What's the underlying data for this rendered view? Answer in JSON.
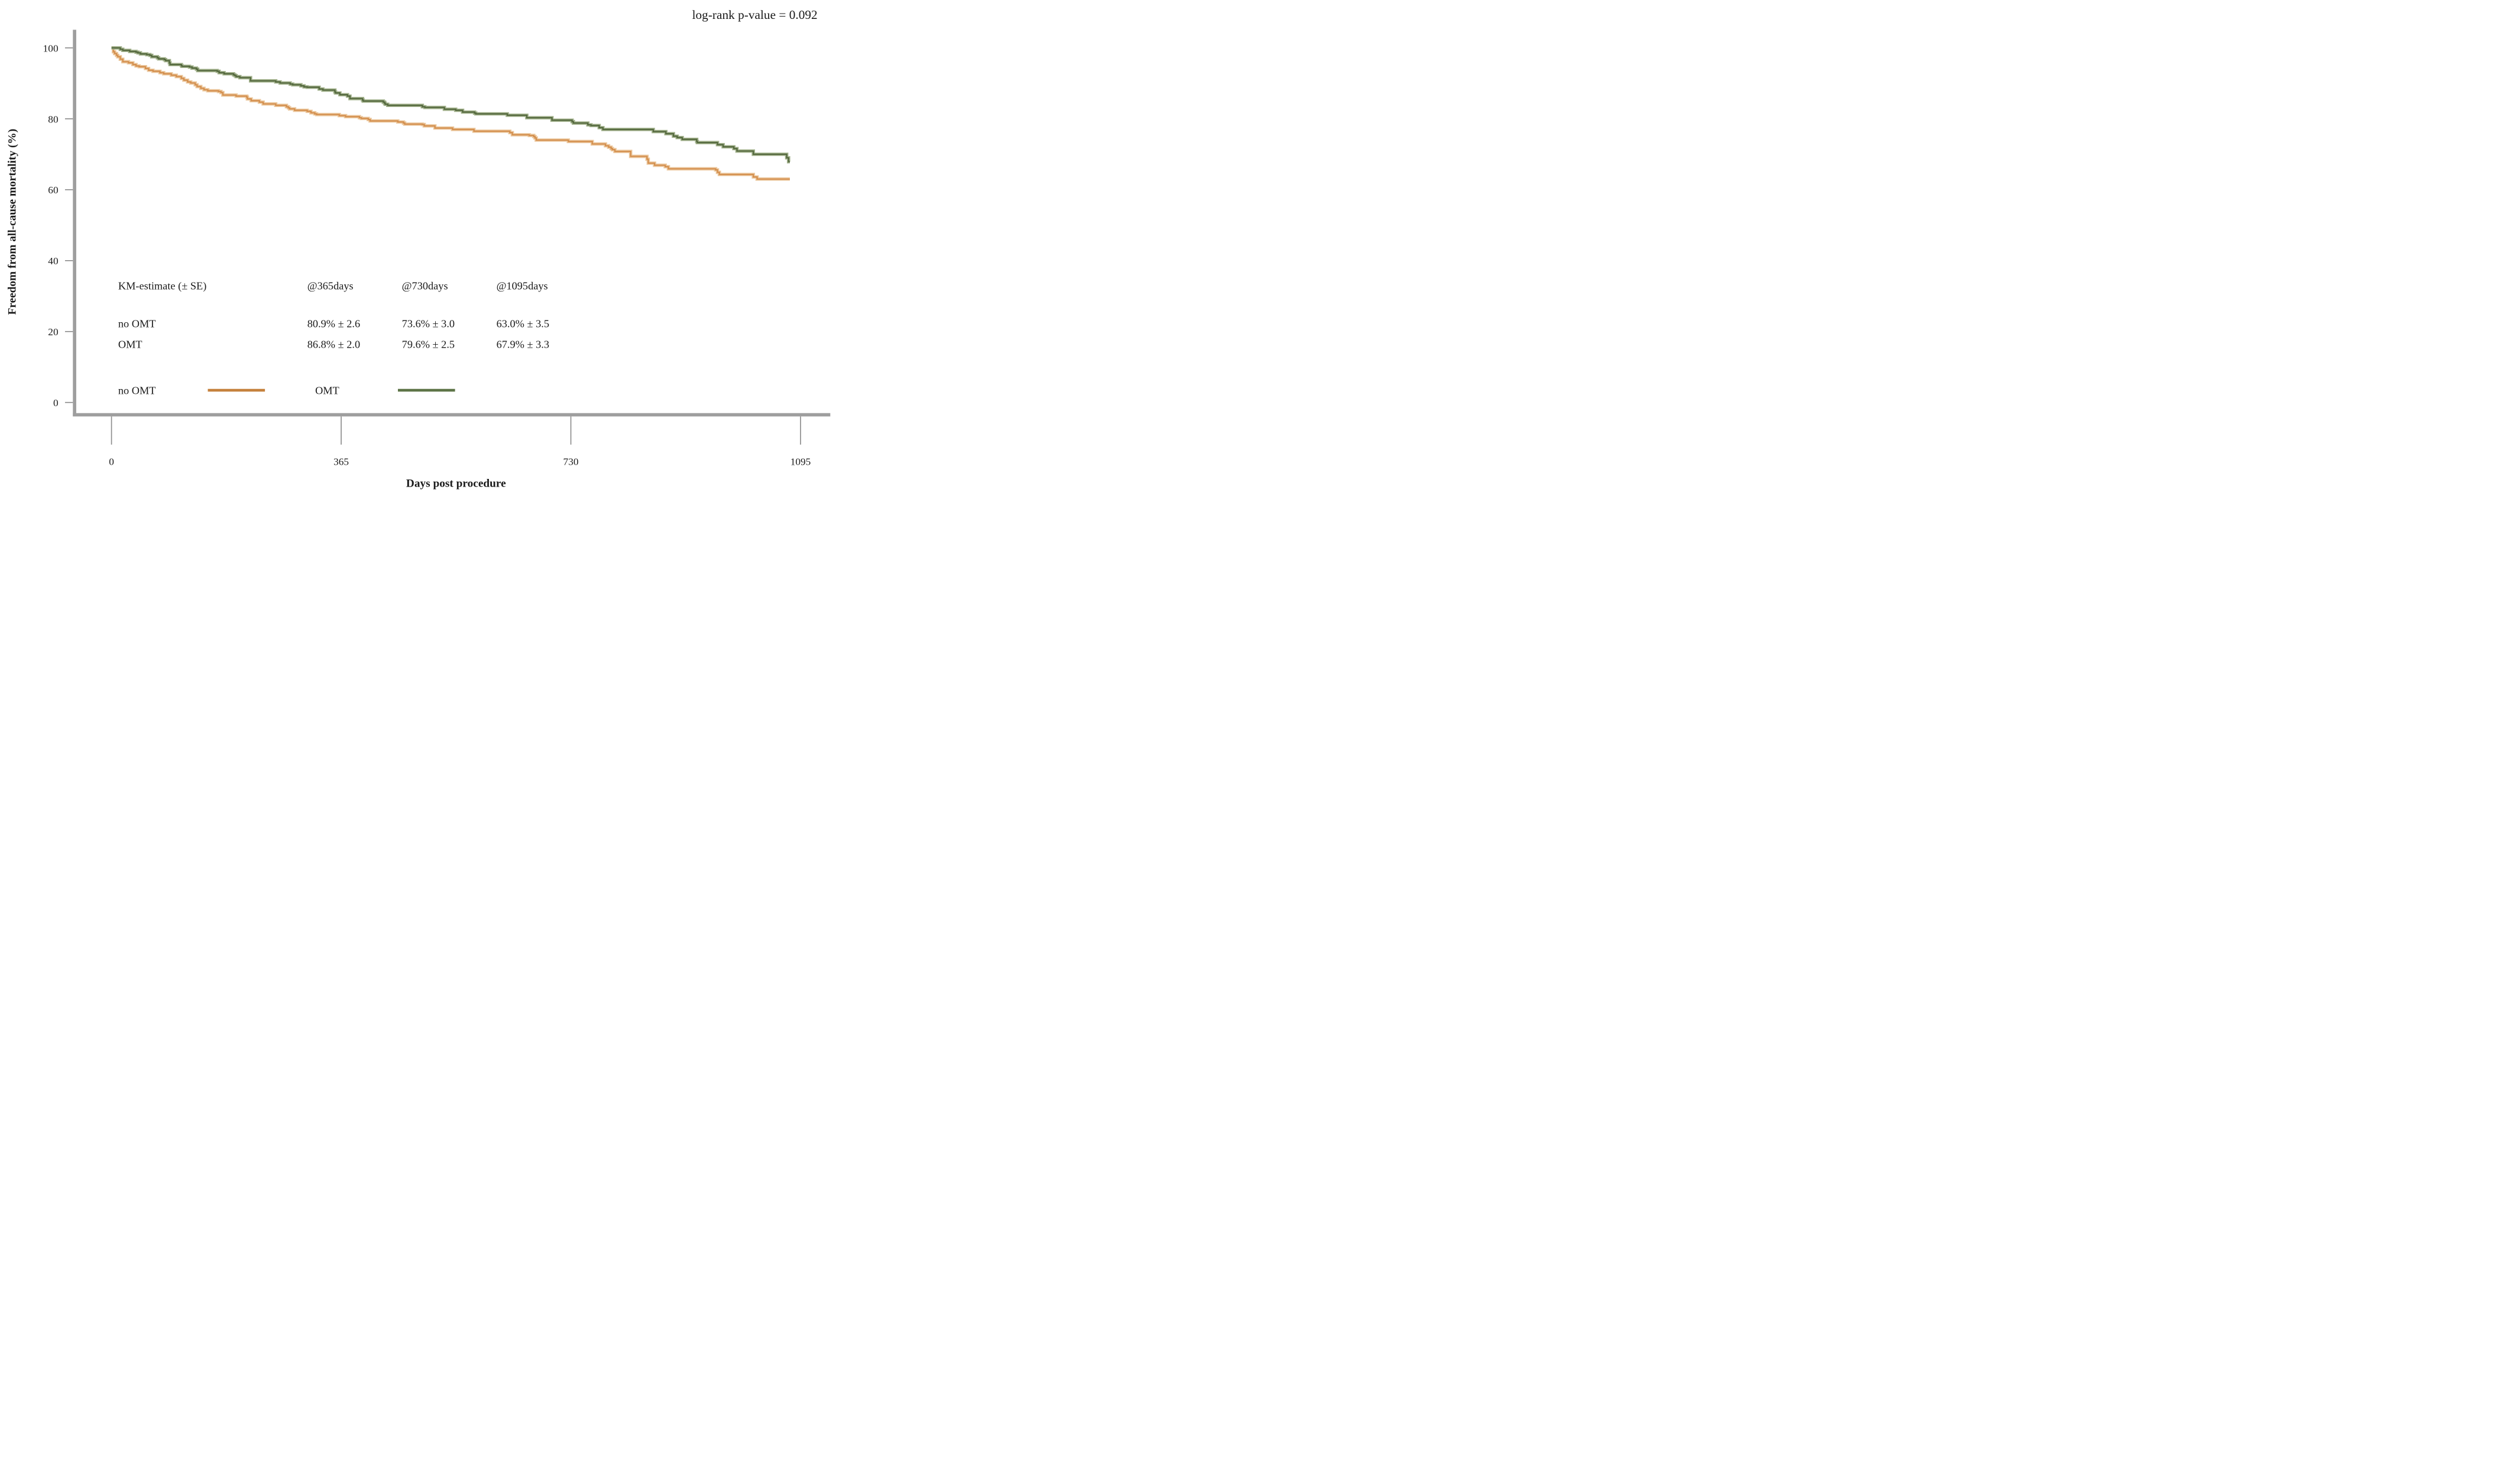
{
  "annotation": {
    "text": "log-rank p-value = 0.092"
  },
  "km_table": {
    "header": [
      "KM-estimate (± SE)",
      "@365days",
      "@730days",
      "@1095days"
    ],
    "rows": [
      {
        "label": "no OMT",
        "color": "#c25a15",
        "values": [
          "80.9% ± 2.6",
          "73.6% ± 3.0",
          "63.0% ± 3.5"
        ]
      },
      {
        "label": "OMT",
        "color": "#5f7347",
        "values": [
          "86.8% ± 2.0",
          "79.6% ± 2.5",
          "67.9% ± 3.3"
        ]
      }
    ]
  },
  "legend": {
    "items": [
      {
        "label": "no OMT",
        "color": "#c5813c"
      },
      {
        "label": "OMT",
        "color": "#5d7447"
      }
    ]
  },
  "chart_data": {
    "type": "line",
    "stepped": true,
    "title": "",
    "xlabel": "Days post procedure",
    "ylabel": "Freedom from all-cause mortality (%)",
    "annotation": "log-rank p-value = 0.092",
    "xlim": [
      0,
      1140
    ],
    "ylim": [
      0,
      100
    ],
    "x_ticks": [
      0,
      365,
      730,
      1095
    ],
    "y_ticks": [
      0,
      20,
      40,
      60,
      80,
      100
    ],
    "grid": false,
    "legend_position": "bottom-left-inside",
    "km_estimates": {
      "at_days": [
        365,
        730,
        1095
      ],
      "no OMT": {
        "estimate": [
          80.9,
          73.6,
          63.0
        ],
        "se": [
          2.6,
          3.0,
          3.5
        ]
      },
      "OMT": {
        "estimate": [
          86.8,
          79.6,
          67.9
        ],
        "se": [
          2.0,
          2.5,
          3.3
        ]
      }
    },
    "series": [
      {
        "name": "no OMT",
        "color": "#d4904f",
        "halo": "#ecc9a0",
        "points": [
          [
            0,
            100
          ],
          [
            3,
            98.9
          ],
          [
            5,
            98.4
          ],
          [
            8,
            97.9
          ],
          [
            10,
            97.5
          ],
          [
            14,
            96.8
          ],
          [
            18,
            96.1
          ],
          [
            27,
            95.8
          ],
          [
            34,
            95.3
          ],
          [
            39,
            94.9
          ],
          [
            44,
            94.7
          ],
          [
            54,
            94.2
          ],
          [
            59,
            93.7
          ],
          [
            66,
            93.4
          ],
          [
            77,
            93.0
          ],
          [
            83,
            92.7
          ],
          [
            95,
            92.3
          ],
          [
            103,
            91.9
          ],
          [
            111,
            91.4
          ],
          [
            115,
            90.9
          ],
          [
            121,
            90.4
          ],
          [
            126,
            90.1
          ],
          [
            133,
            89.6
          ],
          [
            136,
            89.1
          ],
          [
            142,
            88.6
          ],
          [
            147,
            88.2
          ],
          [
            153,
            87.9
          ],
          [
            170,
            87.7
          ],
          [
            174,
            87.4
          ],
          [
            177,
            86.7
          ],
          [
            198,
            86.4
          ],
          [
            215,
            86.1
          ],
          [
            216,
            85.6
          ],
          [
            222,
            85.1
          ],
          [
            235,
            84.7
          ],
          [
            241,
            84.2
          ],
          [
            261,
            83.8
          ],
          [
            278,
            83.4
          ],
          [
            281,
            83.1
          ],
          [
            283,
            82.8
          ],
          [
            291,
            82.4
          ],
          [
            311,
            82.1
          ],
          [
            317,
            81.7
          ],
          [
            323,
            81.4
          ],
          [
            326,
            81.2
          ],
          [
            362,
            80.9
          ],
          [
            372,
            80.6
          ],
          [
            394,
            80.3
          ],
          [
            397,
            80.1
          ],
          [
            408,
            79.8
          ],
          [
            411,
            79.4
          ],
          [
            455,
            79.1
          ],
          [
            464,
            78.8
          ],
          [
            466,
            78.5
          ],
          [
            494,
            78.4
          ],
          [
            497,
            78.0
          ],
          [
            514,
            77.4
          ],
          [
            542,
            77.0
          ],
          [
            576,
            76.5
          ],
          [
            633,
            76.1
          ],
          [
            637,
            75.5
          ],
          [
            664,
            75.3
          ],
          [
            671,
            75.0
          ],
          [
            673,
            74.6
          ],
          [
            675,
            74.0
          ],
          [
            726,
            73.6
          ],
          [
            764,
            72.9
          ],
          [
            785,
            72.4
          ],
          [
            790,
            72.0
          ],
          [
            794,
            71.6
          ],
          [
            796,
            71.3
          ],
          [
            800,
            70.8
          ],
          [
            825,
            69.4
          ],
          [
            851,
            68.6
          ],
          [
            853,
            67.5
          ],
          [
            863,
            66.9
          ],
          [
            880,
            66.5
          ],
          [
            885,
            65.9
          ],
          [
            960,
            65.6
          ],
          [
            963,
            64.9
          ],
          [
            966,
            64.3
          ],
          [
            1020,
            63.6
          ],
          [
            1026,
            63.0
          ],
          [
            1078,
            63.0
          ]
        ]
      },
      {
        "name": "OMT",
        "color": "#55693f",
        "halo": "#a3b28d",
        "points": [
          [
            0,
            100
          ],
          [
            14,
            99.6
          ],
          [
            18,
            99.3
          ],
          [
            29,
            99.0
          ],
          [
            39,
            98.8
          ],
          [
            42,
            98.6
          ],
          [
            46,
            98.3
          ],
          [
            56,
            98.1
          ],
          [
            61,
            97.9
          ],
          [
            64,
            97.5
          ],
          [
            73,
            97.2
          ],
          [
            75,
            96.9
          ],
          [
            84,
            96.7
          ],
          [
            86,
            96.4
          ],
          [
            92,
            95.8
          ],
          [
            93,
            95.3
          ],
          [
            111,
            95.0
          ],
          [
            112,
            94.8
          ],
          [
            124,
            94.6
          ],
          [
            128,
            94.3
          ],
          [
            135,
            94.0
          ],
          [
            137,
            93.6
          ],
          [
            168,
            93.4
          ],
          [
            171,
            93.0
          ],
          [
            179,
            92.7
          ],
          [
            194,
            92.4
          ],
          [
            196,
            92.2
          ],
          [
            198,
            91.9
          ],
          [
            204,
            91.6
          ],
          [
            221,
            90.7
          ],
          [
            261,
            90.4
          ],
          [
            268,
            90.1
          ],
          [
            284,
            89.8
          ],
          [
            288,
            89.6
          ],
          [
            301,
            89.3
          ],
          [
            306,
            89.0
          ],
          [
            311,
            88.9
          ],
          [
            330,
            88.4
          ],
          [
            336,
            88.1
          ],
          [
            355,
            87.6
          ],
          [
            356,
            87.3
          ],
          [
            363,
            86.8
          ],
          [
            375,
            86.4
          ],
          [
            379,
            85.7
          ],
          [
            399,
            85.3
          ],
          [
            400,
            85.0
          ],
          [
            432,
            84.7
          ],
          [
            434,
            84.4
          ],
          [
            435,
            84.1
          ],
          [
            439,
            83.8
          ],
          [
            494,
            83.4
          ],
          [
            498,
            83.2
          ],
          [
            529,
            82.7
          ],
          [
            547,
            82.4
          ],
          [
            558,
            81.9
          ],
          [
            577,
            81.6
          ],
          [
            579,
            81.4
          ],
          [
            629,
            81.0
          ],
          [
            660,
            80.3
          ],
          [
            700,
            79.6
          ],
          [
            732,
            79.2
          ],
          [
            734,
            78.8
          ],
          [
            757,
            78.3
          ],
          [
            762,
            78.1
          ],
          [
            775,
            77.5
          ],
          [
            781,
            77.0
          ],
          [
            861,
            76.4
          ],
          [
            881,
            75.8
          ],
          [
            893,
            75.1
          ],
          [
            899,
            74.7
          ],
          [
            907,
            74.2
          ],
          [
            930,
            73.6
          ],
          [
            931,
            73.3
          ],
          [
            963,
            72.7
          ],
          [
            972,
            72.1
          ],
          [
            989,
            71.6
          ],
          [
            994,
            70.9
          ],
          [
            1020,
            70.0
          ],
          [
            1073,
            69.0
          ],
          [
            1076,
            67.9
          ],
          [
            1078,
            67.9
          ]
        ]
      }
    ]
  }
}
